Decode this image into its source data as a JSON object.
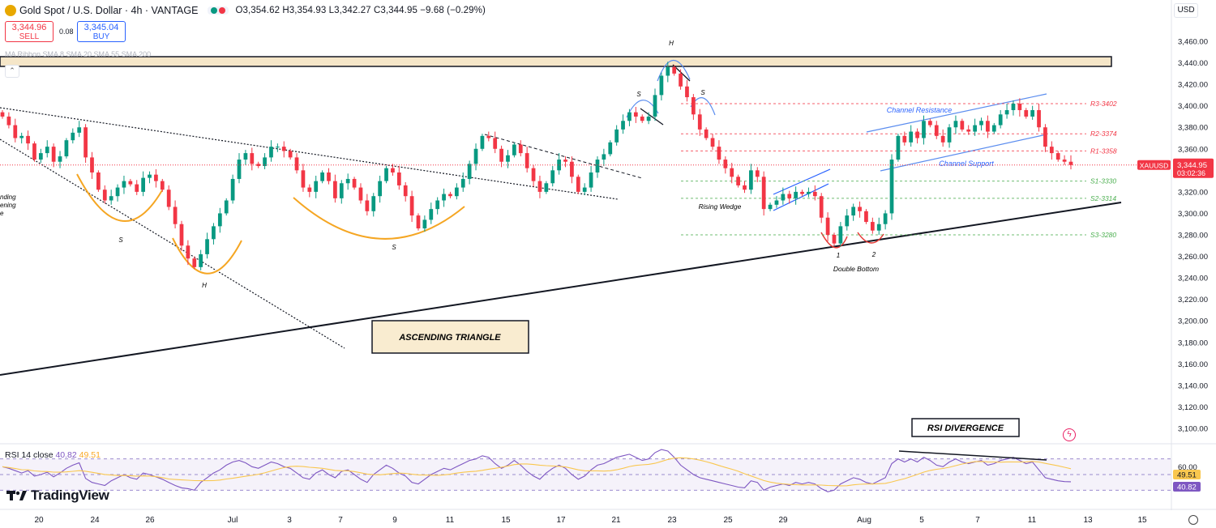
{
  "header": {
    "title": "Gold Spot / U.S. Dollar · 4h · VANTAGE",
    "ohlc": "O3,354.62 H3,354.93 L3,342.27 C3,344.95 −9.68 (−0.29%)",
    "live_colors": [
      "#089981",
      "#f23645"
    ]
  },
  "trade": {
    "sell_price": "3,344.96",
    "sell_label": "SELL",
    "spread": "0.08",
    "buy_price": "3,345.04",
    "buy_label": "BUY"
  },
  "ribbon_legend": "MA Ribbon SMA 8 SMA 20 SMA 55 SMA 200",
  "currency": "USD",
  "rsi": {
    "label": "RSI 14 close",
    "value": "40.82",
    "ma": "49.51"
  },
  "brand": "TradingView",
  "chart_data": {
    "type": "candlestick",
    "symbol": "XAUUSD",
    "price_axis": {
      "min": 3100,
      "max": 3460,
      "ticks": [
        "3,100.00",
        "3,120.00",
        "3,140.00",
        "3,160.00",
        "3,180.00",
        "3,200.00",
        "3,220.00",
        "3,240.00",
        "3,260.00",
        "3,280.00",
        "3,300.00",
        "3,320.00",
        "3,340.00",
        "3,360.00",
        "3,380.00",
        "3,400.00",
        "3,420.00",
        "3,440.00",
        "3,460.00"
      ]
    },
    "time_axis": [
      "20",
      "24",
      "26",
      "Jul",
      "3",
      "7",
      "9",
      "11",
      "15",
      "17",
      "21",
      "23",
      "25",
      "29",
      "Aug",
      "5",
      "7",
      "11",
      "13",
      "15"
    ],
    "last_price": {
      "symbol": "XAUUSD",
      "value": "3,344.95",
      "countdown": "03:02:36"
    },
    "closes": [
      3390,
      3382,
      3370,
      3372,
      3365,
      3350,
      3356,
      3362,
      3348,
      3353,
      3368,
      3375,
      3380,
      3352,
      3338,
      3322,
      3312,
      3316,
      3324,
      3330,
      3327,
      3320,
      3333,
      3336,
      3330,
      3322,
      3306,
      3290,
      3270,
      3258,
      3250,
      3262,
      3276,
      3288,
      3300,
      3312,
      3332,
      3350,
      3356,
      3346,
      3344,
      3352,
      3362,
      3362,
      3358,
      3352,
      3340,
      3324,
      3320,
      3330,
      3338,
      3330,
      3314,
      3328,
      3332,
      3324,
      3312,
      3302,
      3316,
      3330,
      3342,
      3338,
      3326,
      3316,
      3298,
      3286,
      3294,
      3304,
      3312,
      3318,
      3316,
      3324,
      3332,
      3346,
      3360,
      3372,
      3370,
      3360,
      3348,
      3354,
      3364,
      3356,
      3342,
      3330,
      3320,
      3328,
      3340,
      3350,
      3348,
      3334,
      3320,
      3324,
      3338,
      3350,
      3355,
      3366,
      3378,
      3386,
      3394,
      3390,
      3386,
      3390,
      3410,
      3428,
      3436,
      3430,
      3418,
      3408,
      3392,
      3378,
      3370,
      3362,
      3350,
      3342,
      3334,
      3326,
      3322,
      3340,
      3334,
      3304,
      3308,
      3312,
      3318,
      3314,
      3320,
      3318,
      3320,
      3316,
      3296,
      3280,
      3272,
      3288,
      3298,
      3306,
      3302,
      3292,
      3284,
      3290,
      3300,
      3350,
      3372,
      3366,
      3376,
      3370,
      3386,
      3382,
      3372,
      3366,
      3380,
      3386,
      3378,
      3376,
      3382,
      3386,
      3376,
      3382,
      3392,
      3396,
      3402,
      3396,
      3390,
      3396,
      3380,
      3362,
      3356,
      3350,
      3348,
      3344.95
    ],
    "rsi": [
      60,
      58,
      55,
      52,
      55,
      48,
      50,
      53,
      47,
      52,
      58,
      62,
      65,
      45,
      40,
      38,
      36,
      42,
      46,
      50,
      46,
      44,
      52,
      50,
      47,
      44,
      40,
      36,
      33,
      32,
      30,
      40,
      46,
      52,
      56,
      62,
      66,
      68,
      65,
      60,
      58,
      62,
      66,
      64,
      60,
      58,
      52,
      46,
      44,
      52,
      56,
      50,
      46,
      54,
      56,
      50,
      44,
      40,
      50,
      56,
      62,
      58,
      52,
      48,
      40,
      38,
      44,
      50,
      54,
      58,
      56,
      60,
      64,
      68,
      70,
      74,
      72,
      64,
      58,
      62,
      68,
      62,
      54,
      48,
      44,
      52,
      58,
      62,
      58,
      50,
      44,
      48,
      56,
      62,
      64,
      68,
      72,
      74,
      76,
      72,
      68,
      70,
      78,
      82,
      80,
      72,
      62,
      56,
      50,
      46,
      44,
      42,
      40,
      38,
      36,
      34,
      33,
      42,
      40,
      30,
      34,
      36,
      38,
      36,
      40,
      38,
      40,
      38,
      32,
      28,
      30,
      38,
      42,
      46,
      44,
      40,
      38,
      42,
      46,
      64,
      70,
      66,
      70,
      66,
      72,
      68,
      62,
      60,
      66,
      70,
      66,
      64,
      66,
      68,
      62,
      64,
      68,
      70,
      72,
      68,
      64,
      66,
      56,
      46,
      44,
      42,
      41,
      40.82
    ],
    "rsi_axis": {
      "min": 20,
      "max": 80,
      "ticks": [
        "60.00"
      ]
    },
    "levels": [
      {
        "label": "R3-3402",
        "value": 3402,
        "color": "#f23645"
      },
      {
        "label": "R2-3374",
        "value": 3374,
        "color": "#f23645"
      },
      {
        "label": "R1-3358",
        "value": 3358,
        "color": "#f23645"
      },
      {
        "label": "S1-3330",
        "value": 3330,
        "color": "#4caf50"
      },
      {
        "label": "S2-3314",
        "value": 3314,
        "color": "#4caf50"
      },
      {
        "label": "S3-3280",
        "value": 3280,
        "color": "#4caf50"
      }
    ],
    "annotations": [
      "ASCENDING TRIANGLE",
      "RSI DIVERGENCE",
      "Channel Resistance",
      "Channel Support",
      "Rising Wedge",
      "Double Bottom",
      "H",
      "S",
      "S",
      "H",
      "S",
      "S",
      "S",
      "H",
      "1",
      "2",
      "nding",
      "ening",
      "e"
    ],
    "colors": {
      "up": "#089981",
      "down": "#f23645",
      "rsi": "#7e57c2",
      "rsi_ma": "#f9c74f",
      "zone": "#f5e6c8"
    }
  }
}
